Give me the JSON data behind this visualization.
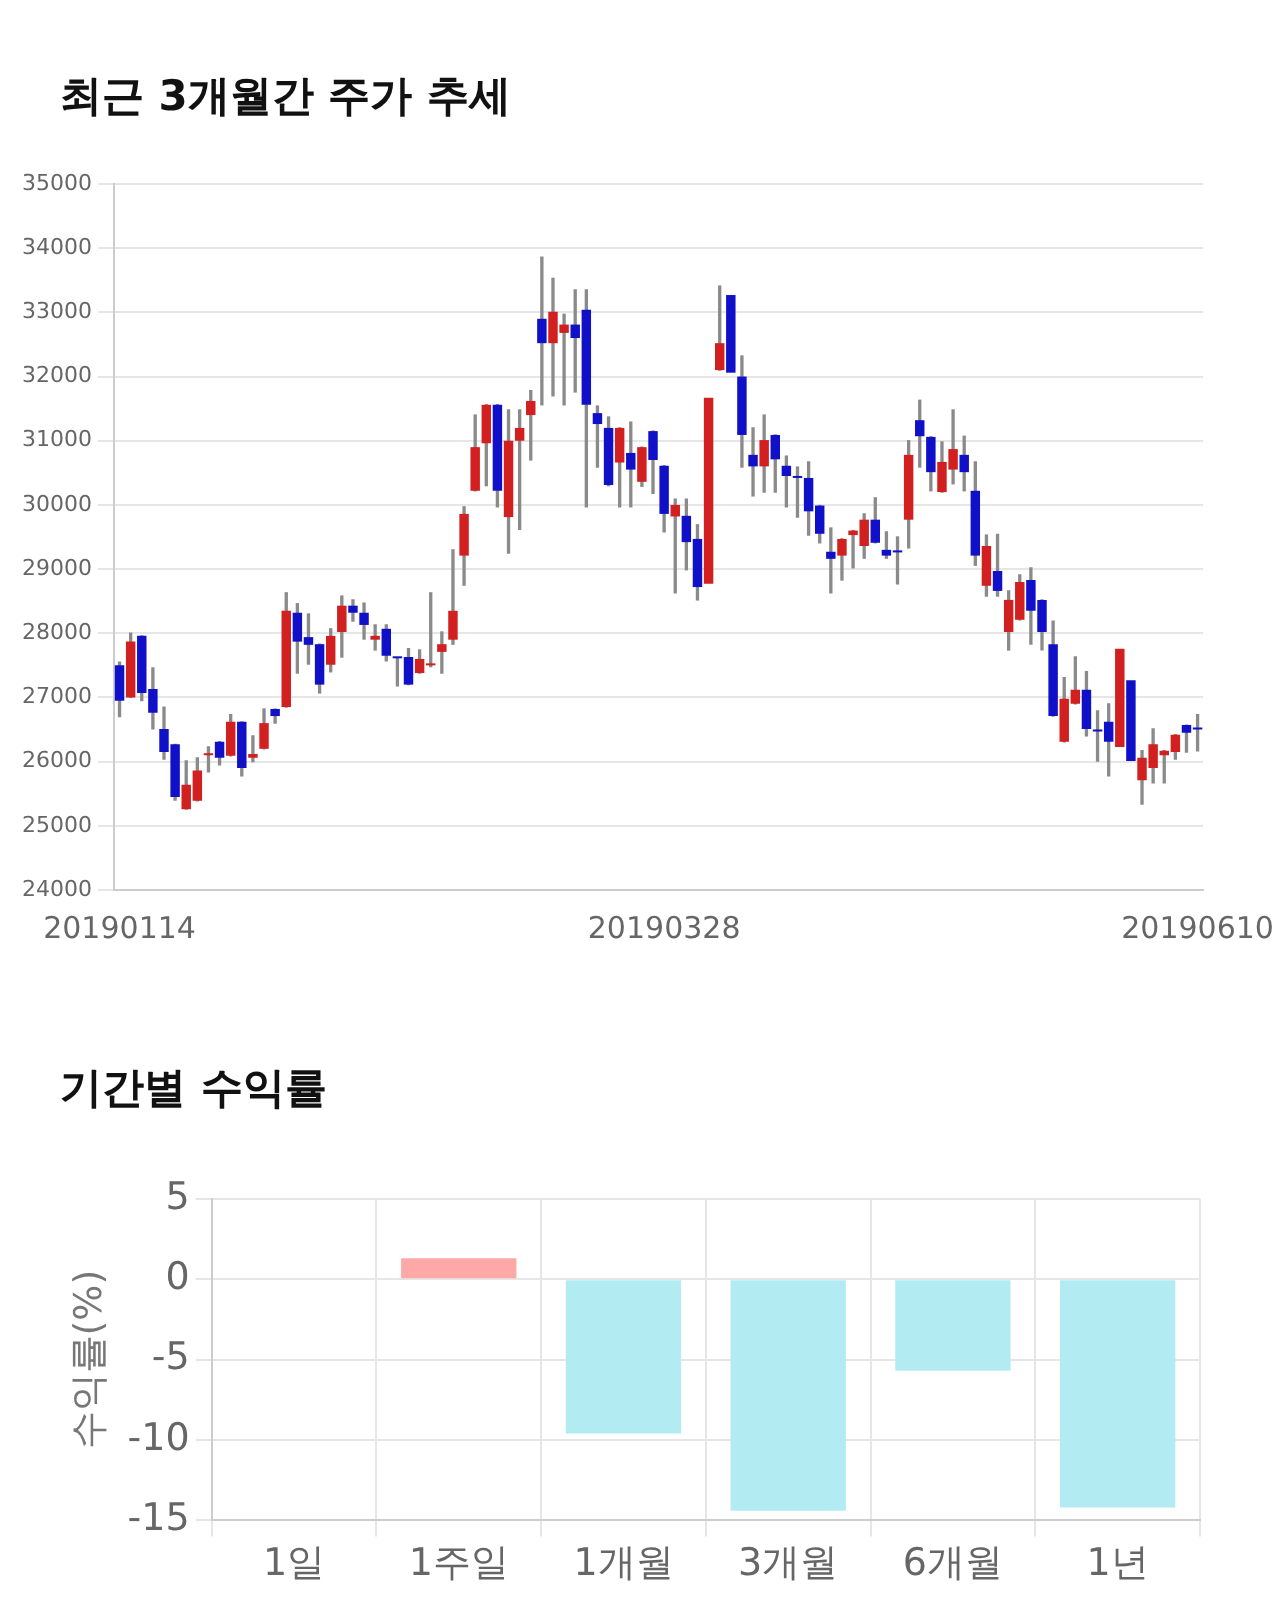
{
  "chart_data": [
    {
      "type": "candlestick",
      "title": "최근 3개월간 주가 추세",
      "categories": [
        "20190114",
        null,
        null,
        null,
        null,
        null,
        null,
        null,
        null,
        null,
        null,
        null,
        null,
        null,
        null,
        null,
        null,
        null,
        null,
        null,
        null,
        null,
        null,
        null,
        null,
        null,
        null,
        null,
        null,
        null,
        null,
        null,
        null,
        null,
        null,
        null,
        null,
        null,
        null,
        null,
        null,
        null,
        null,
        null,
        null,
        null,
        null,
        null,
        null,
        "20190328",
        null,
        null,
        null,
        null,
        null,
        null,
        null,
        null,
        null,
        null,
        null,
        null,
        null,
        null,
        null,
        null,
        null,
        null,
        null,
        null,
        null,
        null,
        null,
        null,
        null,
        null,
        null,
        null,
        null,
        null,
        null,
        null,
        null,
        null,
        null,
        null,
        null,
        null,
        null,
        null,
        null,
        null,
        null,
        null,
        null,
        null,
        null,
        "20190610"
      ],
      "ohlc": [
        [
          27500,
          27550,
          26700,
          26950
        ],
        [
          27000,
          28000,
          27000,
          27870
        ],
        [
          27960,
          27960,
          26950,
          27070
        ],
        [
          27130,
          27460,
          26510,
          26760
        ],
        [
          26510,
          26850,
          26040,
          26150
        ],
        [
          26270,
          26270,
          25400,
          25450
        ],
        [
          25260,
          26010,
          25260,
          25640
        ],
        [
          25390,
          26060,
          25390,
          25860
        ],
        [
          26100,
          26230,
          25840,
          26130
        ],
        [
          26310,
          26310,
          25950,
          26060
        ],
        [
          26090,
          26730,
          26090,
          26620
        ],
        [
          26620,
          26620,
          25780,
          25900
        ],
        [
          26060,
          26400,
          26000,
          26120
        ],
        [
          26200,
          26820,
          26200,
          26600
        ],
        [
          26820,
          26820,
          26600,
          26710
        ],
        [
          26850,
          28630,
          26850,
          28350
        ],
        [
          28320,
          28460,
          27380,
          27870
        ],
        [
          27940,
          28300,
          27520,
          27820
        ],
        [
          27830,
          27830,
          27070,
          27200
        ],
        [
          27510,
          28070,
          27400,
          27960
        ],
        [
          28020,
          28580,
          27630,
          28430
        ],
        [
          28430,
          28520,
          28190,
          28320
        ],
        [
          28320,
          28470,
          27910,
          28130
        ],
        [
          27900,
          28130,
          27740,
          27960
        ],
        [
          28070,
          28130,
          27570,
          27650
        ],
        [
          27620,
          27620,
          27180,
          27610
        ],
        [
          27630,
          27760,
          27200,
          27200
        ],
        [
          27380,
          27740,
          27380,
          27600
        ],
        [
          27500,
          28630,
          27480,
          27520
        ],
        [
          27710,
          28020,
          27380,
          27830
        ],
        [
          27900,
          29300,
          27830,
          28350
        ],
        [
          29210,
          29970,
          28750,
          29860
        ],
        [
          30220,
          31400,
          30220,
          30900
        ],
        [
          30960,
          31560,
          30300,
          31560
        ],
        [
          31560,
          31560,
          29970,
          30220
        ],
        [
          29810,
          31480,
          29250,
          31000
        ],
        [
          31000,
          31480,
          29620,
          31200
        ],
        [
          31400,
          31780,
          30700,
          31620
        ],
        [
          32900,
          33860,
          31560,
          32520
        ],
        [
          32520,
          33530,
          31700,
          33010
        ],
        [
          32680,
          32970,
          31560,
          32810
        ],
        [
          32810,
          33350,
          31760,
          32600
        ],
        [
          33040,
          33350,
          29970,
          31560
        ],
        [
          31430,
          31540,
          30590,
          31260
        ],
        [
          31200,
          31370,
          30300,
          30310
        ],
        [
          30660,
          31200,
          29970,
          31200
        ],
        [
          30810,
          31290,
          29970,
          30550
        ],
        [
          30360,
          30900,
          30290,
          30900
        ],
        [
          31150,
          31150,
          30180,
          30700
        ],
        [
          30610,
          30610,
          29580,
          29860
        ],
        [
          29820,
          30090,
          28630,
          30000
        ],
        [
          29830,
          30090,
          28990,
          29420
        ],
        [
          29470,
          29690,
          28520,
          28720
        ],
        [
          28770,
          31670,
          28770,
          31670
        ],
        [
          32100,
          33410,
          32100,
          32520
        ],
        [
          33270,
          33270,
          32060,
          32060
        ],
        [
          32000,
          32320,
          30590,
          31090
        ],
        [
          30780,
          31200,
          30140,
          30600
        ],
        [
          30600,
          31400,
          30200,
          31010
        ],
        [
          31090,
          31090,
          30200,
          30710
        ],
        [
          30610,
          30760,
          29970,
          30450
        ],
        [
          30440,
          30590,
          29810,
          30420
        ],
        [
          30420,
          30670,
          29530,
          29900
        ],
        [
          29990,
          29990,
          29410,
          29550
        ],
        [
          29270,
          29640,
          28630,
          29160
        ],
        [
          29210,
          29470,
          28830,
          29470
        ],
        [
          29530,
          29600,
          29020,
          29600
        ],
        [
          29360,
          29860,
          29170,
          29770
        ],
        [
          29770,
          30110,
          29410,
          29410
        ],
        [
          29300,
          29580,
          29170,
          29210
        ],
        [
          29280,
          29500,
          28770,
          29260
        ],
        [
          29770,
          31000,
          29330,
          30780
        ],
        [
          31320,
          31630,
          30590,
          31070
        ],
        [
          31060,
          31060,
          30220,
          30510
        ],
        [
          30200,
          30980,
          30200,
          30670
        ],
        [
          30550,
          31480,
          30330,
          30870
        ],
        [
          30780,
          31070,
          30220,
          30510
        ],
        [
          30220,
          30670,
          29060,
          29210
        ],
        [
          28740,
          29530,
          28580,
          29360
        ],
        [
          28970,
          29540,
          28580,
          28660
        ],
        [
          28020,
          28660,
          27740,
          28520
        ],
        [
          28210,
          28910,
          28210,
          28800
        ],
        [
          28830,
          29020,
          27830,
          28350
        ],
        [
          28520,
          28520,
          27740,
          28020
        ],
        [
          27830,
          28190,
          26710,
          26710
        ],
        [
          26310,
          27310,
          26310,
          26980
        ],
        [
          26900,
          27630,
          26900,
          27120
        ],
        [
          27120,
          27400,
          26400,
          26510
        ],
        [
          26490,
          26790,
          26010,
          26470
        ],
        [
          26620,
          26900,
          25780,
          26310
        ],
        [
          26230,
          27760,
          26230,
          27760
        ],
        [
          27270,
          27270,
          26010,
          26010
        ],
        [
          25710,
          26170,
          25340,
          26060
        ],
        [
          25900,
          26510,
          25670,
          26270
        ],
        [
          26100,
          26170,
          25670,
          26170
        ],
        [
          26150,
          26420,
          26040,
          26420
        ],
        [
          26570,
          26570,
          26150,
          26450
        ],
        [
          26520,
          26730,
          26170,
          26500
        ]
      ],
      "colors": [
        "#1010c8",
        "#d21f1f",
        "#1010c8",
        "#1010c8",
        "#1010c8",
        "#1010c8",
        "#d21f1f",
        "#d21f1f",
        "#d21f1f",
        "#1010c8",
        "#d21f1f",
        "#1010c8",
        "#d21f1f",
        "#d21f1f",
        "#1010c8",
        "#d21f1f",
        "#1010c8",
        "#1010c8",
        "#1010c8",
        "#d21f1f",
        "#d21f1f",
        "#1010c8",
        "#1010c8",
        "#d21f1f",
        "#1010c8",
        "#1010c8",
        "#1010c8",
        "#d21f1f",
        "#d21f1f",
        "#d21f1f",
        "#d21f1f",
        "#d21f1f",
        "#d21f1f",
        "#d21f1f",
        "#1010c8",
        "#d21f1f",
        "#d21f1f",
        "#d21f1f",
        "#1010c8",
        "#d21f1f",
        "#d21f1f",
        "#1010c8",
        "#1010c8",
        "#1010c8",
        "#1010c8",
        "#d21f1f",
        "#1010c8",
        "#d21f1f",
        "#1010c8",
        "#1010c8",
        "#d21f1f",
        "#1010c8",
        "#1010c8",
        "#d21f1f",
        "#d21f1f",
        "#1010c8",
        "#1010c8",
        "#1010c8",
        "#d21f1f",
        "#1010c8",
        "#1010c8",
        "#1010c8",
        "#1010c8",
        "#1010c8",
        "#1010c8",
        "#d21f1f",
        "#d21f1f",
        "#d21f1f",
        "#1010c8",
        "#1010c8",
        "#1010c8",
        "#d21f1f",
        "#1010c8",
        "#1010c8",
        "#d21f1f",
        "#d21f1f",
        "#1010c8",
        "#1010c8",
        "#d21f1f",
        "#1010c8",
        "#d21f1f",
        "#d21f1f",
        "#1010c8",
        "#1010c8",
        "#1010c8",
        "#d21f1f",
        "#d21f1f",
        "#1010c8",
        "#1010c8",
        "#1010c8",
        "#d21f1f",
        "#1010c8",
        "#d21f1f",
        "#d21f1f",
        "#d21f1f",
        "#d21f1f",
        "#1010c8",
        "#1010c8"
      ],
      "ylim": [
        24000,
        35000
      ],
      "yticks": [
        24000,
        25000,
        26000,
        27000,
        28000,
        29000,
        30000,
        31000,
        32000,
        33000,
        34000,
        35000
      ],
      "grid": "y"
    },
    {
      "type": "bar",
      "title": "기간별 수익률",
      "ylabel": "수익률(%)",
      "categories": [
        "1일",
        "1주일",
        "1개월",
        "3개월",
        "6개월",
        "1년"
      ],
      "values": [
        0,
        1.3,
        -9.6,
        -14.4,
        -5.7,
        -14.2
      ],
      "colors": [
        "#ffa8a8",
        "#ffa8a8",
        "#b2ebf2",
        "#b2ebf2",
        "#b2ebf2",
        "#b2ebf2"
      ],
      "ylim": [
        -15,
        5
      ],
      "yticks": [
        -15,
        -10,
        -5,
        0,
        5
      ],
      "grid": true
    }
  ]
}
